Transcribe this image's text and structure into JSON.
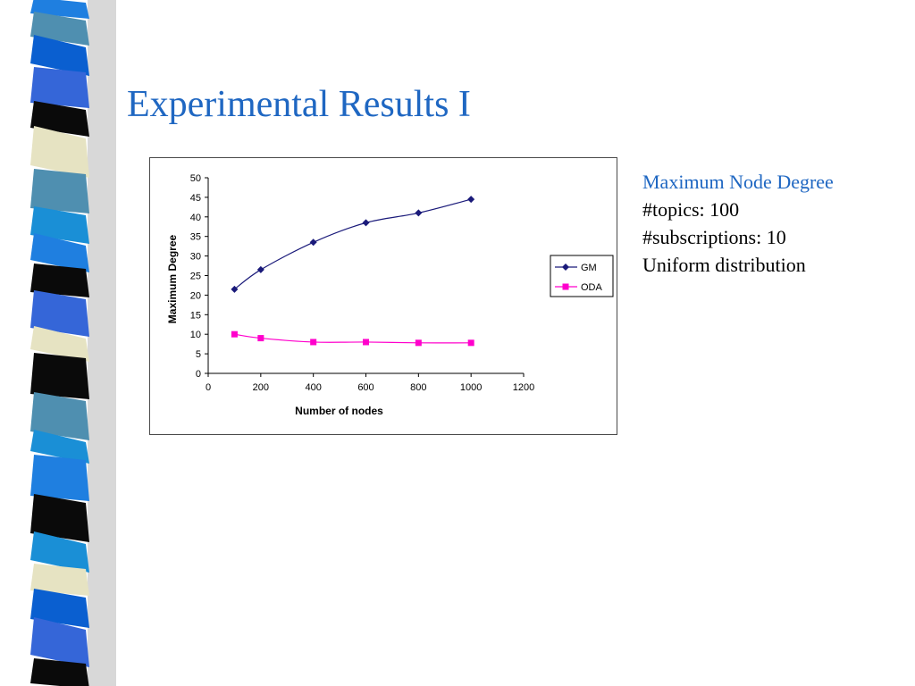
{
  "slide": {
    "title": "Experimental Results I",
    "title_color": "#1f67c2"
  },
  "notes": {
    "heading": "Maximum Node Degree",
    "heading_color": "#1f67c2",
    "lines": [
      "#topics: 100",
      "#subscriptions: 10",
      "Uniform distribution"
    ]
  },
  "chart_data": {
    "type": "line",
    "title": "",
    "xlabel": "Number of nodes",
    "ylabel": "Maximum Degree",
    "xlim": [
      0,
      1200
    ],
    "ylim": [
      0,
      50
    ],
    "x_ticks": [
      0,
      200,
      400,
      600,
      800,
      1000,
      1200
    ],
    "y_ticks": [
      0,
      5,
      10,
      15,
      20,
      25,
      30,
      35,
      40,
      45,
      50
    ],
    "grid": false,
    "legend_position": "right",
    "series": [
      {
        "name": "GM",
        "color": "#1a1a7a",
        "marker": "diamond",
        "x": [
          100,
          200,
          400,
          600,
          800,
          1000
        ],
        "y": [
          21.5,
          26.5,
          33.5,
          38.5,
          41,
          44.5
        ]
      },
      {
        "name": "ODA",
        "color": "#ff00cc",
        "marker": "square",
        "x": [
          100,
          200,
          400,
          600,
          800,
          1000
        ],
        "y": [
          10,
          9,
          8,
          8,
          7.8,
          7.8
        ]
      }
    ]
  },
  "decor": {
    "strip_colors": [
      "#1f7fe0",
      "#0a0a0a",
      "#e6e3c2",
      "#4f8fb0",
      "#1a8fd6",
      "#3566d8",
      "#0a5fd0"
    ]
  }
}
